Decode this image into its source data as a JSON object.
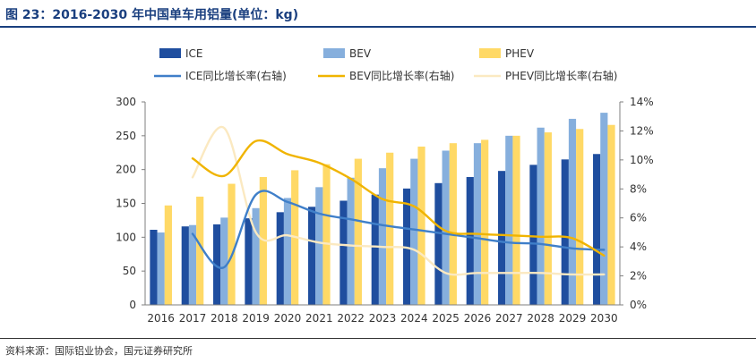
{
  "header": {
    "title": "图 23：2016-2030 年中国单车用铝量(单位：kg)"
  },
  "footer": {
    "source": "资料来源：国际铝业协会，国元证券研究所"
  },
  "chart_data": {
    "type": "bar",
    "categories": [
      "2016",
      "2017",
      "2018",
      "2019",
      "2020",
      "2021",
      "2022",
      "2023",
      "2024",
      "2025",
      "2026",
      "2027",
      "2028",
      "2029",
      "2030"
    ],
    "left_axis": {
      "min": 0,
      "max": 300,
      "ticks": [
        0,
        50,
        100,
        150,
        200,
        250,
        300
      ]
    },
    "right_axis": {
      "min": 0,
      "max": 14,
      "ticks": [
        "0%",
        "2%",
        "4%",
        "6%",
        "8%",
        "10%",
        "12%",
        "14%"
      ]
    },
    "grid": false,
    "legend_position": "top",
    "series": [
      {
        "name": "ICE",
        "type": "bar",
        "axis": "left",
        "color": "#1f4e9f",
        "values": [
          111,
          116,
          119,
          128,
          137,
          145,
          154,
          163,
          172,
          180,
          189,
          198,
          207,
          215,
          223
        ]
      },
      {
        "name": "BEV",
        "type": "bar",
        "axis": "left",
        "color": "#86afdd",
        "values": [
          107,
          118,
          129,
          143,
          158,
          174,
          188,
          202,
          216,
          228,
          239,
          250,
          262,
          275,
          284
        ]
      },
      {
        "name": "PHEV",
        "type": "bar",
        "axis": "left",
        "color": "#ffd966",
        "values": [
          147,
          160,
          179,
          189,
          199,
          208,
          216,
          225,
          234,
          239,
          244,
          250,
          255,
          260,
          266
        ]
      },
      {
        "name": "ICE同比增长率(右轴)",
        "type": "line",
        "axis": "right",
        "color": "#3f7fc9",
        "values": [
          null,
          4.9,
          2.6,
          7.6,
          7.1,
          6.3,
          5.9,
          5.5,
          5.2,
          4.9,
          4.6,
          4.3,
          4.2,
          3.9,
          3.8
        ]
      },
      {
        "name": "BEV同比增长率(右轴)",
        "type": "line",
        "axis": "right",
        "color": "#f0b400",
        "values": [
          null,
          10.1,
          8.9,
          11.3,
          10.4,
          9.8,
          8.7,
          7.3,
          6.8,
          5.1,
          4.9,
          4.8,
          4.7,
          4.6,
          3.4
        ]
      },
      {
        "name": "PHEV同比增长率(右轴)",
        "type": "line",
        "axis": "right",
        "color": "#fbe9c1",
        "values": [
          null,
          8.8,
          12.2,
          5.0,
          4.8,
          4.3,
          4.1,
          4.0,
          3.8,
          2.2,
          2.2,
          2.2,
          2.2,
          2.1,
          2.1
        ]
      }
    ]
  }
}
